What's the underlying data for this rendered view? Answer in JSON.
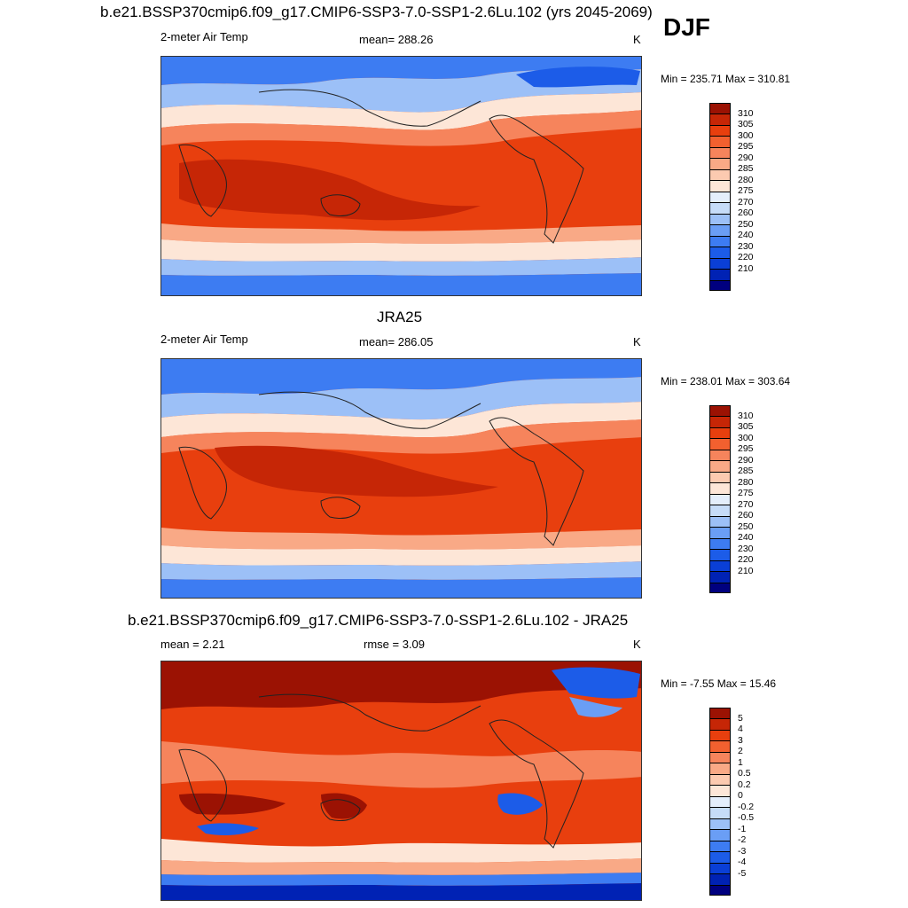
{
  "figure": {
    "season": "DJF",
    "title_top": "b.e21.BSSP370cmip6.f09_g17.CMIP6-SSP3-7.0-SSP1-2.6Lu.102 (yrs 2045-2069)",
    "title_mid": "JRA25",
    "title_diff": "b.e21.BSSP370cmip6.f09_g17.CMIP6-SSP3-7.0-SSP1-2.6Lu.102 - JRA25"
  },
  "colors": {
    "abs_palette": [
      "#00007f",
      "#0022b4",
      "#0a3fd6",
      "#1c5ce8",
      "#3d7cf2",
      "#6a9ef5",
      "#9cc0f7",
      "#c6dcf8",
      "#e4eefb",
      "#fde6d7",
      "#fccab0",
      "#f9a986",
      "#f6845c",
      "#f2602f",
      "#e83f0e",
      "#c62606",
      "#9b1203"
    ],
    "diff_palette": [
      "#00007f",
      "#0022b4",
      "#0a3fd6",
      "#1c5ce8",
      "#3d7cf2",
      "#6a9ef5",
      "#9cc0f7",
      "#c6dcf8",
      "#e4eefb",
      "#fde6d7",
      "#fccab0",
      "#f9a986",
      "#f6845c",
      "#f2602f",
      "#e83f0e",
      "#c62606",
      "#9b1203"
    ]
  },
  "chart_data": [
    {
      "type": "heatmap",
      "title": "b.e21.BSSP370cmip6.f09_g17.CMIP6-SSP3-7.0-SSP1-2.6Lu.102 (yrs 2045-2069)",
      "variable": "2-meter Air Temp",
      "mean_label": "mean= 288.26",
      "units": "K",
      "minmax_label": "Min = 235.71 Max = 310.81",
      "min": 235.71,
      "max": 310.81,
      "mean": 288.26,
      "colorbar_ticks": [
        "310",
        "305",
        "300",
        "295",
        "290",
        "285",
        "280",
        "275",
        "270",
        "260",
        "250",
        "240",
        "230",
        "220",
        "210"
      ]
    },
    {
      "type": "heatmap",
      "title": "JRA25",
      "variable": "2-meter Air Temp",
      "mean_label": "mean= 286.05",
      "units": "K",
      "minmax_label": "Min = 238.01 Max = 303.64",
      "min": 238.01,
      "max": 303.64,
      "mean": 286.05,
      "colorbar_ticks": [
        "310",
        "305",
        "300",
        "295",
        "290",
        "285",
        "280",
        "275",
        "270",
        "260",
        "250",
        "240",
        "230",
        "220",
        "210"
      ]
    },
    {
      "type": "heatmap",
      "title": "b.e21.BSSP370cmip6.f09_g17.CMIP6-SSP3-7.0-SSP1-2.6Lu.102 - JRA25",
      "mean_label": "mean =   2.21",
      "rmse_label": "rmse =   3.09",
      "units": "K",
      "minmax_label": "Min =  -7.55 Max =  15.46",
      "min": -7.55,
      "max": 15.46,
      "mean": 2.21,
      "rmse": 3.09,
      "colorbar_ticks": [
        "5",
        "4",
        "3",
        "2",
        "1",
        "0.5",
        "0.2",
        "0",
        "-0.2",
        "-0.5",
        "-1",
        "-2",
        "-3",
        "-4",
        "-5"
      ]
    }
  ]
}
